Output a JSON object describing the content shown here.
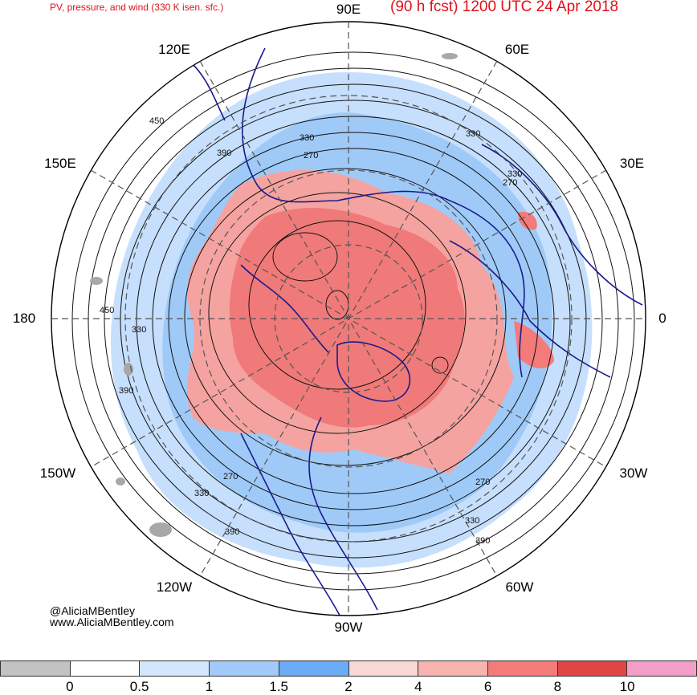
{
  "header": {
    "left_title": "PV, pressure, and wind (330 K isen. sfc.)",
    "right_title": "(90 h fcst) 1200 UTC 24 Apr 2018"
  },
  "map": {
    "projection": "north-polar-stereographic",
    "longitude_labels": {
      "top": "90E",
      "upper_left": "120E",
      "upper_right": "60E",
      "left_upper": "150E",
      "right_upper": "30E",
      "left": "180",
      "right": "0",
      "left_lower": "150W",
      "right_lower": "30W",
      "lower_left": "120W",
      "lower_right": "60W",
      "bottom": "90W"
    },
    "contour_labels": [
      "450",
      "330",
      "270",
      "390",
      "330",
      "450",
      "330",
      "390",
      "270",
      "330",
      "270",
      "330",
      "270",
      "330",
      "390",
      "390"
    ],
    "colors": {
      "coast": "#1a1a8c",
      "contour": "#111111",
      "grid": "#555555"
    }
  },
  "credits": {
    "handle": "@AliciaMBentley",
    "site": "www.AliciaMBentley.com"
  },
  "colorbar": {
    "colors": [
      "#c2c2c2",
      "#ffffff",
      "#d2e6fc",
      "#a2cafa",
      "#6cabf5",
      "#f9d9d5",
      "#f7b3ad",
      "#f37b7a",
      "#e24546",
      "#f29ec8"
    ],
    "tick_labels": [
      "0",
      "0.5",
      "1",
      "1.5",
      "2",
      "4",
      "6",
      "8",
      "10"
    ]
  }
}
